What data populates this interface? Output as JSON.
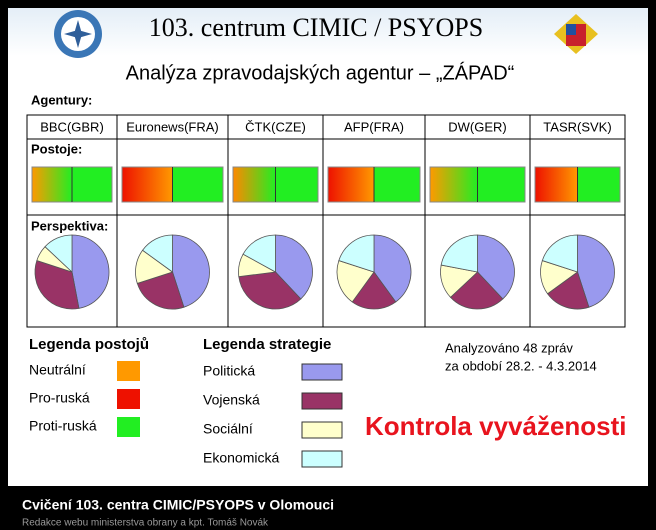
{
  "header": {
    "title": "103. centrum  CIMIC / PSYOPS",
    "subtitle": "Analýza zpravodajských agentur – „ZÁPAD“"
  },
  "table": {
    "agencies_label": "Agentury:",
    "stances_label": "Postoje:",
    "perspective_label": "Perspektiva:"
  },
  "chart_data": [
    {
      "type": "pie",
      "title": "BBC(GBR)",
      "values": [
        47,
        33,
        7,
        13
      ],
      "stance_colors": [
        "#ff9900",
        "#22ee22"
      ]
    },
    {
      "type": "pie",
      "title": "Euronews(FRA)",
      "values": [
        45,
        25,
        15,
        15
      ],
      "stance_colors": [
        "#ee1100",
        "#ff9900"
      ]
    },
    {
      "type": "pie",
      "title": "ČTK(CZE)",
      "values": [
        38,
        35,
        10,
        17
      ],
      "stance_colors": [
        "#ff8800",
        "#22ee22"
      ]
    },
    {
      "type": "pie",
      "title": "AFP(FRA)",
      "values": [
        40,
        20,
        20,
        20
      ],
      "stance_colors": [
        "#ee1100",
        "#ff9900"
      ]
    },
    {
      "type": "pie",
      "title": "DW(GER)",
      "values": [
        38,
        25,
        15,
        22
      ],
      "stance_colors": [
        "#ff9900",
        "#22ee22"
      ]
    },
    {
      "type": "pie",
      "title": "TASR(SVK)",
      "values": [
        45,
        20,
        15,
        20
      ],
      "stance_colors": [
        "#ee1100",
        "#ff9900"
      ]
    }
  ],
  "legend_stances": {
    "title": "Legenda postojů",
    "items": [
      {
        "label": "Neutrální",
        "color": "#ff9900"
      },
      {
        "label": "Pro-ruská",
        "color": "#ee1100"
      },
      {
        "label": "Proti-ruská",
        "color": "#22ee22"
      }
    ]
  },
  "legend_strategy": {
    "title": "Legenda strategie",
    "items": [
      {
        "label": "Politická",
        "color": "#9999ee"
      },
      {
        "label": "Vojenská",
        "color": "#993366"
      },
      {
        "label": "Sociální",
        "color": "#ffffcc"
      },
      {
        "label": "Ekonomická",
        "color": "#ccffff"
      }
    ]
  },
  "note": [
    "Analyzováno 48 zpráv",
    "za období 28.2. - 4.3.2014"
  ],
  "highlight": "Kontrola vyváženosti",
  "caption": {
    "title": "Cvičení 103. centra CIMIC/PSYOPS v Olomouci",
    "credit": "Redakce webu ministerstva obrany a kpt. Tomáš Novák"
  }
}
